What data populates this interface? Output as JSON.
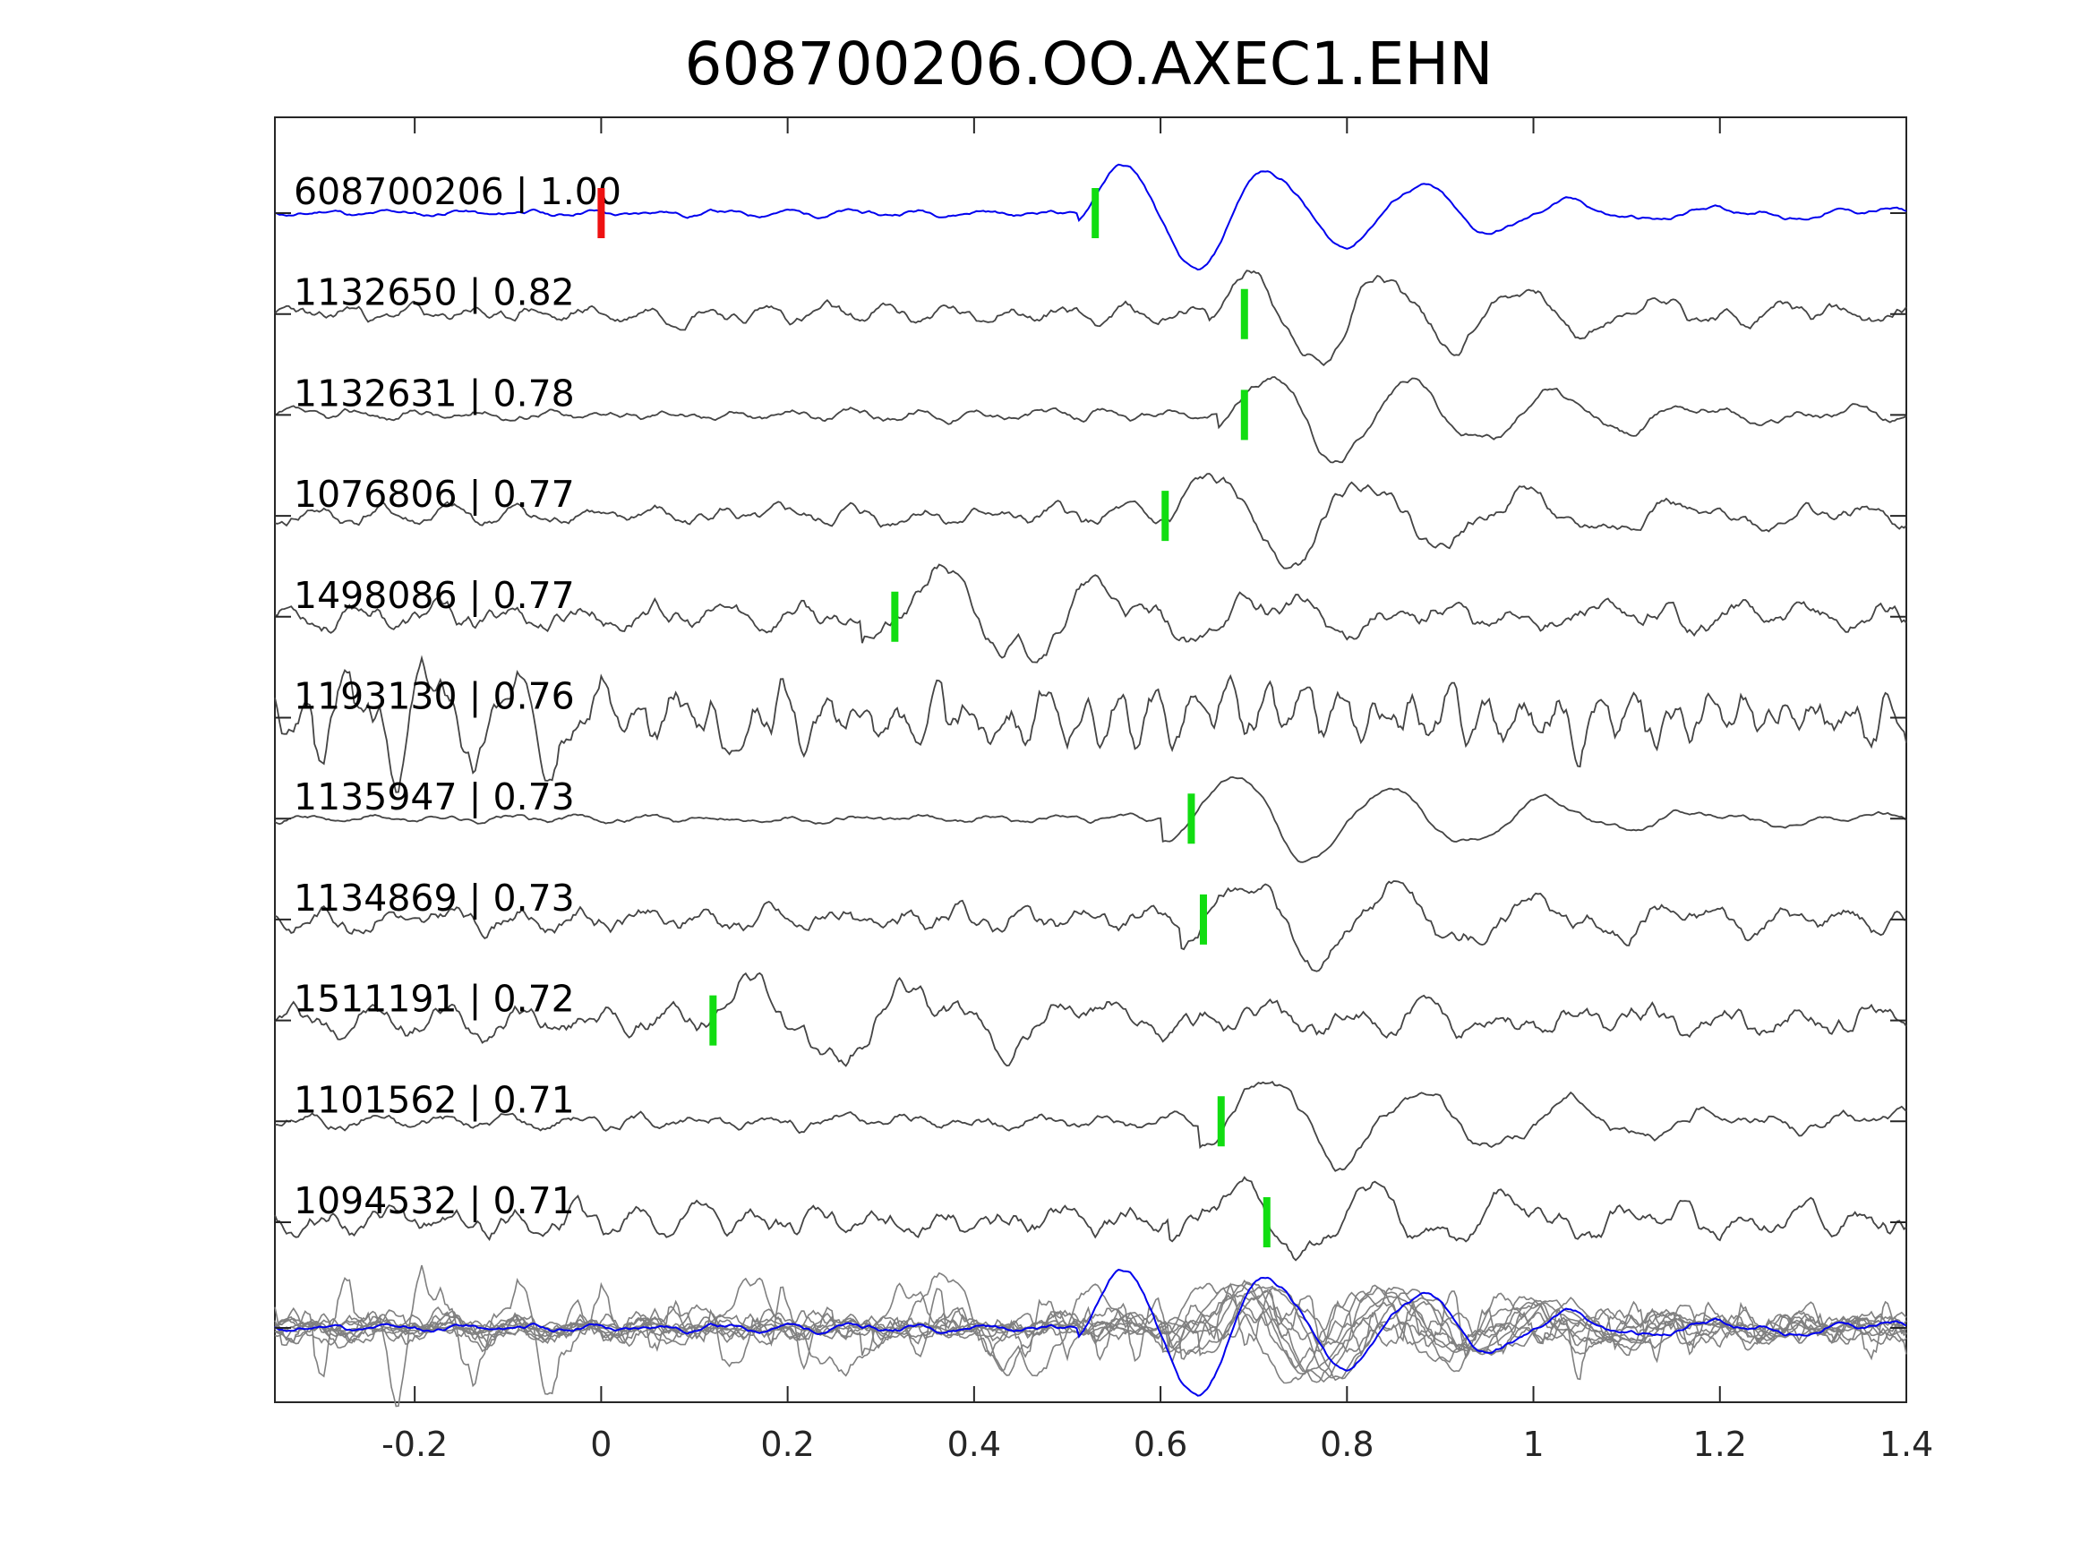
{
  "figure": {
    "title": "608700206.OO.AXEC1.EHN"
  },
  "chart_data": {
    "type": "line",
    "title": "608700206.OO.AXEC1.EHN",
    "xlabel": "",
    "ylabel": "",
    "xlim": [
      -0.35,
      1.4
    ],
    "x_ticks": [
      "-0.2",
      "0",
      "0.2",
      "0.4",
      "0.6",
      "0.8",
      "1",
      "1.2",
      "1.4"
    ],
    "x_tick_values": [
      -0.2,
      0,
      0.2,
      0.4,
      0.6,
      0.8,
      1.0,
      1.2,
      1.4
    ],
    "grid": false,
    "colors": {
      "template": "#0000ee",
      "match": "#444444",
      "stack": "#808080",
      "pick": "#11dd11",
      "origin_marker": "#ee1111"
    },
    "origin_marker_x": 0.0,
    "traces": [
      {
        "id": "608700206",
        "cc": "1.00",
        "label": "608700206 | 1.00",
        "pick": 0.53,
        "color": "template",
        "onset": 0.53,
        "amp": 1.25,
        "noise": 0.1,
        "f": 6.2,
        "seed": 11
      },
      {
        "id": "1132650",
        "cc": "0.82",
        "label": "1132650 | 0.82",
        "pick": 0.69,
        "color": "match",
        "onset": 0.67,
        "amp": 1.1,
        "noise": 0.28,
        "f": 6.8,
        "seed": 23
      },
      {
        "id": "1132631",
        "cc": "0.78",
        "label": "1132631 | 0.78",
        "pick": 0.69,
        "color": "match",
        "onset": 0.68,
        "amp": 1.0,
        "noise": 0.18,
        "f": 6.5,
        "seed": 37
      },
      {
        "id": "1076806",
        "cc": "0.77",
        "label": "1076806 | 0.77",
        "pick": 0.605,
        "color": "match",
        "onset": 0.63,
        "amp": 1.05,
        "noise": 0.3,
        "f": 6.0,
        "seed": 41
      },
      {
        "id": "1498086",
        "cc": "0.77",
        "label": "1498086 | 0.77",
        "pick": 0.315,
        "color": "match",
        "onset": 0.3,
        "amp": 0.95,
        "noise": 0.42,
        "f": 5.6,
        "seed": 53
      },
      {
        "id": "1193130",
        "cc": "0.76",
        "label": "1193130 | 0.76",
        "pick": null,
        "color": "match",
        "onset": -0.29,
        "amp": 0.95,
        "noise": 0.85,
        "f": 11.0,
        "seed": 67
      },
      {
        "id": "1135947",
        "cc": "0.73",
        "label": "1135947 | 0.73",
        "pick": 0.633,
        "color": "match",
        "onset": 0.62,
        "amp": 1.0,
        "noise": 0.12,
        "f": 5.9,
        "seed": 71
      },
      {
        "id": "1134869",
        "cc": "0.73",
        "label": "1134869 | 0.73",
        "pick": 0.646,
        "color": "match",
        "onset": 0.64,
        "amp": 0.95,
        "noise": 0.4,
        "f": 6.4,
        "seed": 83
      },
      {
        "id": "1511191",
        "cc": "0.72",
        "label": "1511191 | 0.72",
        "pick": 0.12,
        "color": "match",
        "onset": 0.12,
        "amp": 0.95,
        "noise": 0.45,
        "f": 5.4,
        "seed": 97
      },
      {
        "id": "1101562",
        "cc": "0.71",
        "label": "1101562 | 0.71",
        "pick": 0.665,
        "color": "match",
        "onset": 0.66,
        "amp": 1.0,
        "noise": 0.25,
        "f": 6.1,
        "seed": 101
      },
      {
        "id": "1094532",
        "cc": "0.71",
        "label": "1094532 | 0.71",
        "pick": 0.714,
        "color": "match",
        "onset": 0.63,
        "amp": 0.85,
        "noise": 0.45,
        "f": 6.6,
        "seed": 113
      }
    ],
    "stack": {
      "description_color": "stack",
      "template_color": "template"
    }
  }
}
